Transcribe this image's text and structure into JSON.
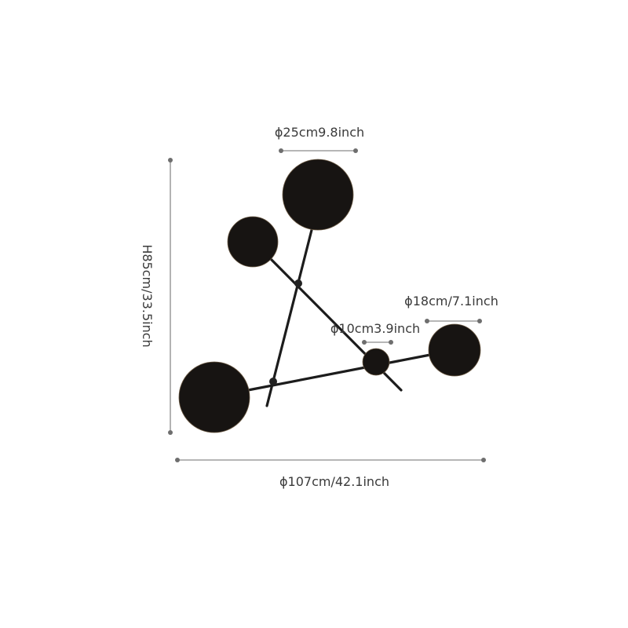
{
  "dimensions": {
    "large_disc_diameter": "ϕ25cm9.8inch",
    "medium_disc_diameter": "ϕ18cm/7.1inch",
    "small_disc_diameter": "ϕ10cm3.9inch",
    "height": "H85cm/33.5inch",
    "width": "ϕ107cm/42.1inch"
  },
  "colors": {
    "disc": "#171412",
    "rod": "#1c1c1c",
    "dimension_line": "#8a8a8a",
    "text": "#3a3a3a"
  }
}
